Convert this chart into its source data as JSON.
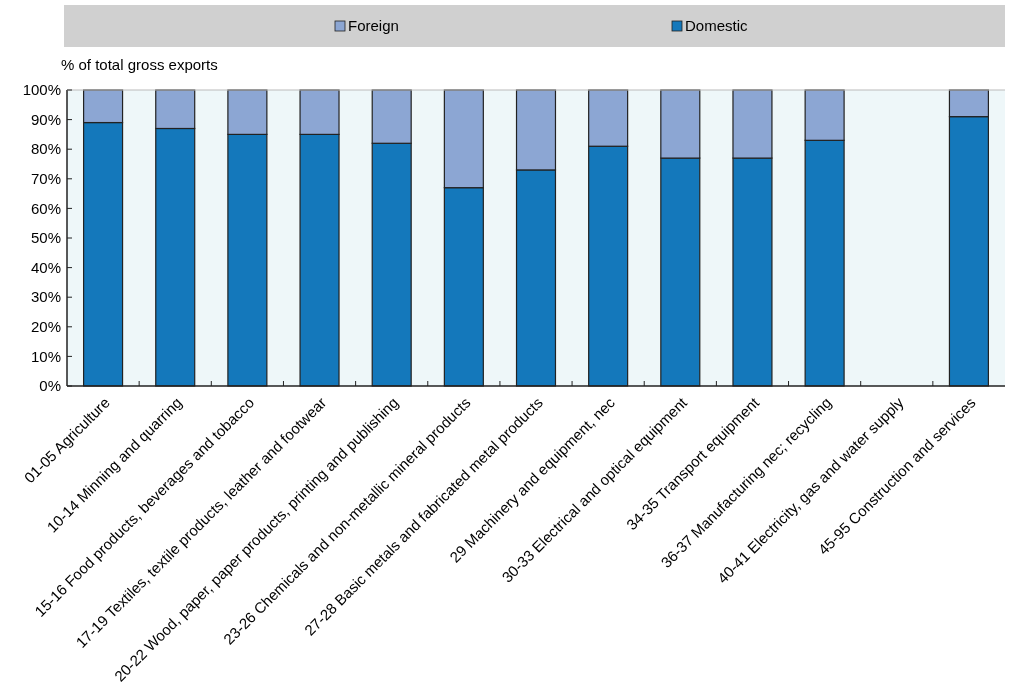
{
  "chart_data": {
    "type": "bar",
    "stacked": true,
    "ylabel": "% of total gross exports",
    "legend": "top",
    "categories": [
      "01-05 Agriculture",
      "10-14 Minning and quarring",
      "15-16 Food products, beverages and tobacco",
      "17-19 Textiles, textile products, leather and footwear",
      "20-22 Wood, paper, paper products, printing and publishing",
      "23-26 Chemicals and non-metallic mineral products",
      "27-28 Basic metals and fabricated metal products",
      "29 Machinery and equipment, nec",
      "30-33 Electrical and optical equipment",
      "34-35 Transport equipment",
      "36-37  Manufacturing nec; recycling",
      "40-41 Electricity, gas and water supply",
      "45-95 Construction and services"
    ],
    "series": [
      {
        "name": "Domestic",
        "color": "#1478bb",
        "values": [
          89,
          87,
          85,
          85,
          82,
          67,
          73,
          81,
          77,
          77,
          83,
          null,
          91
        ]
      },
      {
        "name": "Foreign",
        "color": "#8ca6d3",
        "values": [
          11,
          13,
          15,
          15,
          18,
          33,
          27,
          19,
          23,
          23,
          17,
          null,
          9
        ]
      }
    ],
    "ylim": [
      0,
      100
    ],
    "yticks": [
      {
        "value": 0,
        "label": "0%"
      },
      {
        "value": 10,
        "label": "10%"
      },
      {
        "value": 20,
        "label": "20%"
      },
      {
        "value": 30,
        "label": "30%"
      },
      {
        "value": 40,
        "label": "40%"
      },
      {
        "value": 50,
        "label": "50%"
      },
      {
        "value": 60,
        "label": "60%"
      },
      {
        "value": 70,
        "label": "70%"
      },
      {
        "value": 80,
        "label": "80%"
      },
      {
        "value": 90,
        "label": "90%"
      },
      {
        "value": 100,
        "label": "100%"
      }
    ]
  }
}
